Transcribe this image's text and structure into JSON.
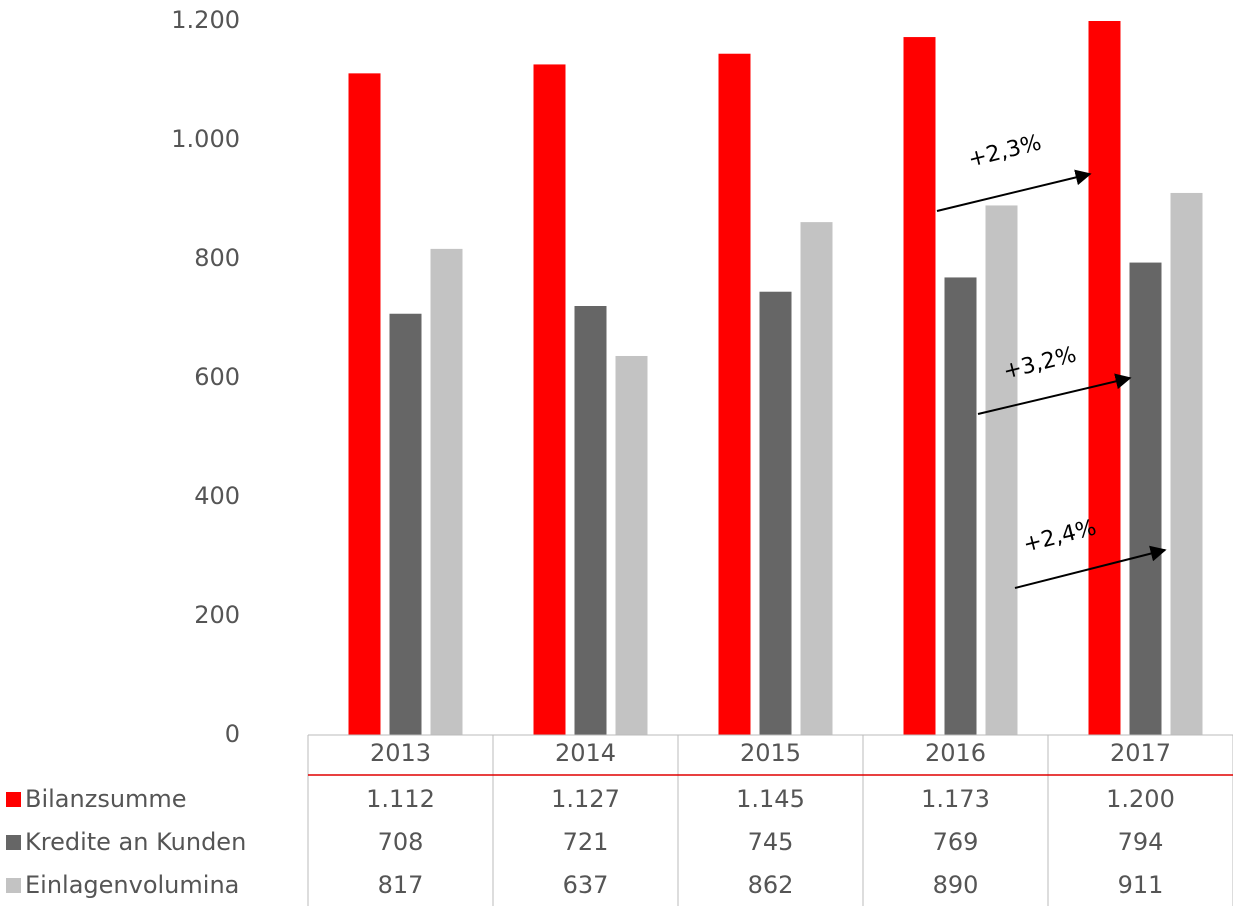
{
  "chart_data": {
    "type": "bar",
    "categories": [
      "2013",
      "2014",
      "2015",
      "2016",
      "2017"
    ],
    "series": [
      {
        "name": "Bilanzsumme",
        "color": "#ff0000",
        "values": [
          1112,
          1127,
          1145,
          1173,
          1200
        ],
        "value_labels": [
          "1.112",
          "1.127",
          "1.145",
          "1.173",
          "1.200"
        ]
      },
      {
        "name": "Kredite an Kunden",
        "color": "#666666",
        "values": [
          708,
          721,
          745,
          769,
          794
        ],
        "value_labels": [
          "708",
          "721",
          "745",
          "769",
          "794"
        ]
      },
      {
        "name": "Einlagenvolumina",
        "color": "#c3c3c3",
        "values": [
          817,
          637,
          862,
          890,
          911
        ],
        "value_labels": [
          "817",
          "637",
          "862",
          "890",
          "911"
        ]
      }
    ],
    "ylim": [
      0,
      1200
    ],
    "yticks": [
      0,
      200,
      400,
      600,
      800,
      {
        "value": 1000,
        "label": "1.000"
      },
      {
        "value": 1200,
        "label": "1.200"
      }
    ],
    "grid": false,
    "annotations": [
      "+2,3%",
      "+3,2%",
      "+2,4%"
    ]
  }
}
